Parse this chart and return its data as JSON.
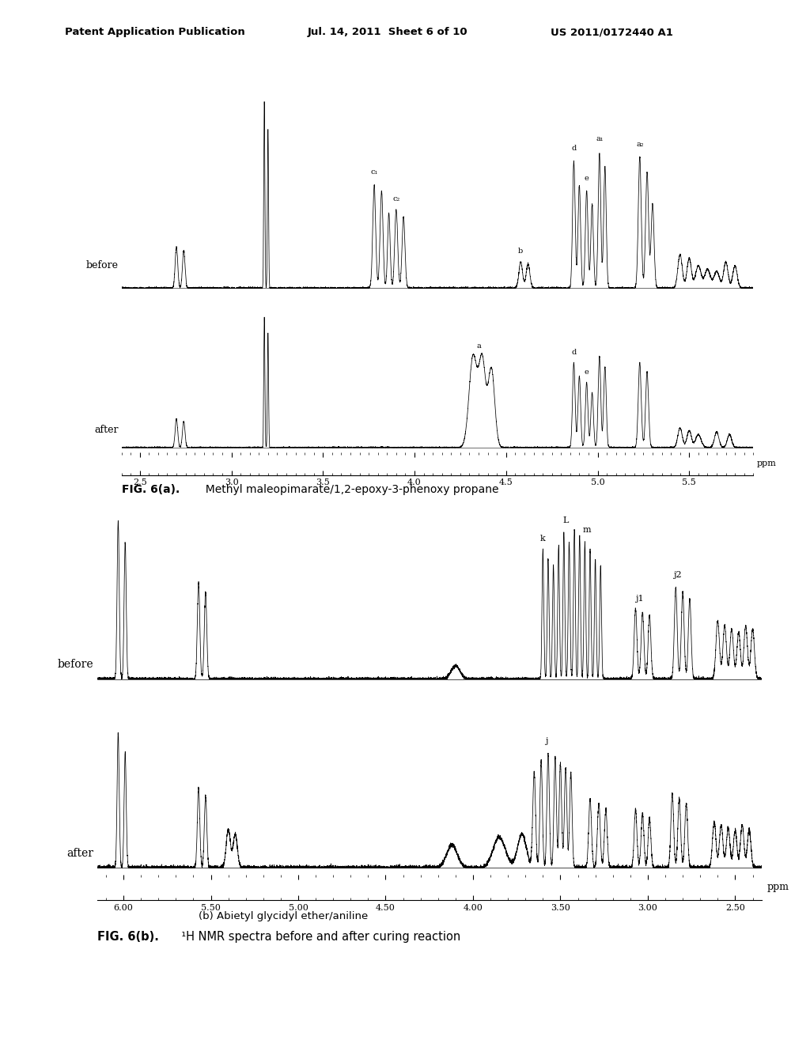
{
  "header_left": "Patent Application Publication",
  "header_mid": "Jul. 14, 2011  Sheet 6 of 10",
  "header_right": "US 2011/0172440 A1",
  "fig6a_caption_bold": "FIG. 6(a).",
  "fig6a_caption_normal": "  Methyl maleopimarate/1,2-epoxy-3-phenoxy propane",
  "fig6b_caption1": "(b) Abietyl glycidyl ether/aniline",
  "fig6b_caption2_bold": "FIG. 6(b).",
  "fig6b_caption2_normal": "  ¹H NMR spectra before and after curing reaction",
  "background_color": "#ffffff",
  "text_color": "#000000"
}
